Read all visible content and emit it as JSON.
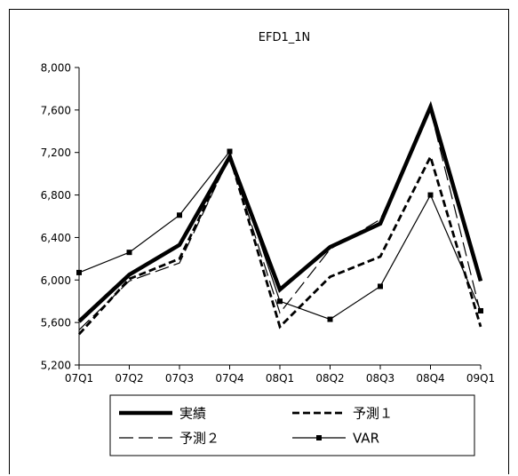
{
  "chart_data": {
    "type": "line",
    "title": "EFD1_1N",
    "xlabel": "",
    "ylabel": "",
    "categories": [
      "07Q1",
      "07Q2",
      "07Q3",
      "07Q4",
      "08Q1",
      "08Q2",
      "08Q3",
      "08Q4",
      "09Q1"
    ],
    "ylim": [
      5200,
      8000
    ],
    "yticks": [
      5200,
      5600,
      6000,
      6400,
      6800,
      7200,
      7600,
      8000
    ],
    "ytick_labels": [
      "5,200",
      "5,600",
      "6,000",
      "6,400",
      "6,800",
      "7,200",
      "7,600",
      "8,000"
    ],
    "grid": false,
    "legend_position": "bottom",
    "series": [
      {
        "name": "実績",
        "style": "thick-solid",
        "color": "#000000",
        "values": [
          5610,
          6050,
          6330,
          7160,
          5910,
          6310,
          6530,
          7630,
          5990
        ]
      },
      {
        "name": "予測１",
        "style": "thick-dashed",
        "color": "#000000",
        "values": [
          5490,
          6010,
          6200,
          7170,
          5560,
          6030,
          6220,
          7160,
          5560
        ]
      },
      {
        "name": "予測２",
        "style": "long-dash",
        "color": "#000000",
        "values": [
          5530,
          5990,
          6160,
          7160,
          5690,
          6290,
          6570,
          7600,
          5680
        ]
      },
      {
        "name": "VAR",
        "style": "solid-square-markers",
        "color": "#000000",
        "values": [
          6070,
          6260,
          6610,
          7210,
          5800,
          5630,
          5940,
          6800,
          5710
        ]
      }
    ]
  }
}
